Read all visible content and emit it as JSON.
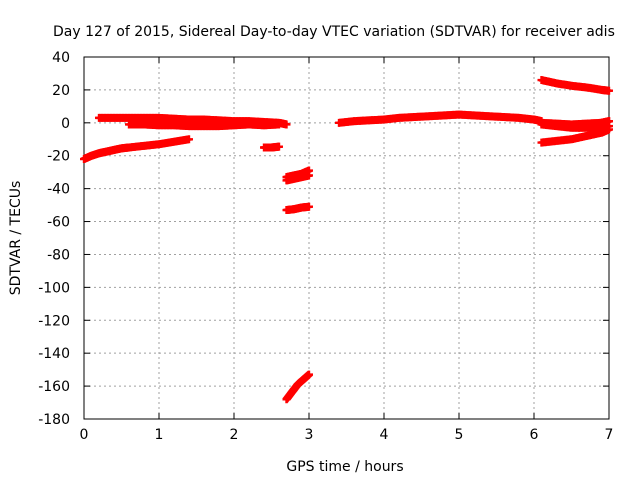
{
  "chart_data": {
    "type": "scatter",
    "title": "Day 127 of 2015, Sidereal Day-to-day VTEC variation (SDTVAR) for receiver adis",
    "xlabel": "GPS time / hours",
    "ylabel": "SDTVAR / TECUs",
    "xlim": [
      0,
      7
    ],
    "ylim": [
      -180,
      40
    ],
    "xticks": [
      0,
      1,
      2,
      3,
      4,
      5,
      6,
      7
    ],
    "xtick_labels": [
      "0",
      "1",
      "2",
      "3",
      "4",
      "5",
      "6",
      "7"
    ],
    "yticks": [
      40,
      20,
      0,
      -20,
      -40,
      -60,
      -80,
      -100,
      -120,
      -140,
      -160,
      -180
    ],
    "ytick_labels": [
      "40",
      "20",
      "0",
      "-20",
      "-40",
      "-60",
      "-80",
      "-100",
      "-120",
      "-140",
      "-160",
      "-180"
    ],
    "grid": true,
    "marker": "plus",
    "marker_color": "#ff0000",
    "series": [
      {
        "x": [
          0.2,
          0.4,
          0.6,
          0.8,
          1.0,
          1.2,
          1.4,
          1.6,
          1.8,
          2.0,
          2.2,
          2.4,
          2.6,
          2.7
        ],
        "y": [
          3,
          3,
          3,
          3,
          3,
          2.5,
          2,
          2,
          1.5,
          1,
          1,
          0.5,
          0,
          -1
        ]
      },
      {
        "x": [
          0.6,
          0.8,
          1.0,
          1.2,
          1.4,
          1.6,
          1.8,
          2.0,
          2.2,
          2.4,
          2.6
        ],
        "y": [
          -1,
          -1,
          -1.5,
          -1.5,
          -2,
          -2,
          -2,
          -1.5,
          -1,
          -1.5,
          -1
        ]
      },
      {
        "x": [
          0.0,
          0.1,
          0.2,
          0.3,
          0.4,
          0.5,
          0.6,
          0.8,
          1.0,
          1.2,
          1.4
        ],
        "y": [
          -22,
          -20,
          -18.5,
          -17.5,
          -16.5,
          -15.5,
          -15,
          -14,
          -13,
          -11.5,
          -10
        ]
      },
      {
        "x": [
          2.4,
          2.5,
          2.6
        ],
        "y": [
          -15,
          -15,
          -14.5
        ]
      },
      {
        "x": [
          2.7,
          2.8,
          2.9,
          3.0
        ],
        "y": [
          -33,
          -32,
          -31,
          -29
        ]
      },
      {
        "x": [
          2.7,
          2.8,
          2.9,
          3.0
        ],
        "y": [
          -35,
          -34,
          -33,
          -32
        ]
      },
      {
        "x": [
          2.7,
          2.8,
          2.9,
          3.0
        ],
        "y": [
          -53,
          -52.5,
          -51.5,
          -51
        ]
      },
      {
        "x": [
          2.7,
          2.75,
          2.8,
          2.85,
          2.9,
          2.95,
          3.0
        ],
        "y": [
          -168,
          -165,
          -162,
          -159,
          -157,
          -155,
          -153
        ]
      },
      {
        "x": [
          3.4,
          3.6,
          3.8,
          4.0,
          4.2,
          4.4,
          4.6,
          4.8,
          5.0,
          5.2,
          5.4,
          5.6,
          5.8,
          6.0,
          6.1
        ],
        "y": [
          0,
          1,
          1.5,
          2,
          3,
          3.5,
          4,
          4.5,
          5,
          4.5,
          4,
          3.5,
          3,
          2,
          1
        ]
      },
      {
        "x": [
          6.1,
          6.3,
          6.5,
          6.7,
          6.9,
          7.0
        ],
        "y": [
          26,
          24,
          22.5,
          21.5,
          20,
          19.5
        ]
      },
      {
        "x": [
          6.1,
          6.3,
          6.5,
          6.7,
          6.9,
          7.0
        ],
        "y": [
          0,
          -0.5,
          -1,
          -0.5,
          0,
          1
        ]
      },
      {
        "x": [
          6.1,
          6.3,
          6.5,
          6.7,
          6.9,
          7.0
        ],
        "y": [
          -1,
          -2,
          -3,
          -3,
          -3,
          -2
        ]
      },
      {
        "x": [
          6.1,
          6.3,
          6.5,
          6.7,
          6.9,
          7.0
        ],
        "y": [
          -12,
          -11,
          -10,
          -8,
          -6,
          -4
        ]
      },
      {
        "x": [
          6.6,
          6.8,
          6.9,
          7.0
        ],
        "y": [
          -3,
          -1,
          0,
          1
        ]
      }
    ]
  }
}
